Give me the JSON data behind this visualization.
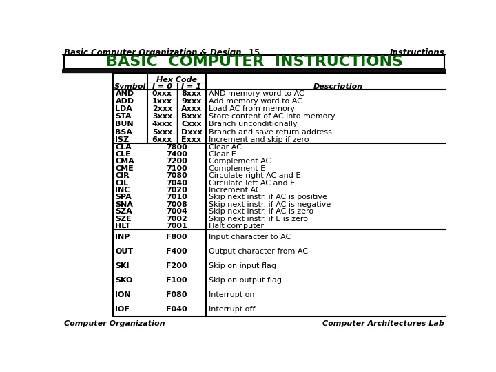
{
  "title_left": "Basic Computer Organization & Design",
  "title_center": "15",
  "title_right": "Instructions",
  "main_title": "BASIC  COMPUTER  INSTRUCTIONS",
  "main_title_color": "#006600",
  "mem_ref_rows": [
    [
      "AND",
      "0xxx",
      "8xxx",
      "AND memory word to AC"
    ],
    [
      "ADD",
      "1xxx",
      "9xxx",
      "Add memory word to AC"
    ],
    [
      "LDA",
      "2xxx",
      "Axxx",
      "Load AC from memory"
    ],
    [
      "STA",
      "3xxx",
      "Bxxx",
      "Store content of AC into memory"
    ],
    [
      "BUN",
      "4xxx",
      "Cxxx",
      "Branch unconditionally"
    ],
    [
      "BSA",
      "5xxx",
      "Dxxx",
      "Branch and save return address"
    ],
    [
      "ISZ",
      "6xxx",
      "Exxx",
      "Increment and skip if zero"
    ]
  ],
  "reg_ref_rows": [
    [
      "CLA",
      "7800",
      "Clear AC"
    ],
    [
      "CLE",
      "7400",
      "Clear E"
    ],
    [
      "CMA",
      "7200",
      "Complement AC"
    ],
    [
      "CME",
      "7100",
      "Complement E"
    ],
    [
      "CIR",
      "7080",
      "Circulate right AC and E"
    ],
    [
      "CIL",
      "7040",
      "Circulate left AC and E"
    ],
    [
      "INC",
      "7020",
      "Increment AC"
    ],
    [
      "SPA",
      "7010",
      "Skip next instr. if AC is positive"
    ],
    [
      "SNA",
      "7008",
      "Skip next instr. if AC is negative"
    ],
    [
      "SZA",
      "7004",
      "Skip next instr. if AC is zero"
    ],
    [
      "SZE",
      "7002",
      "Skip next instr. if E is zero"
    ],
    [
      "HLT",
      "7001",
      "Halt computer"
    ]
  ],
  "io_rows": [
    [
      "INP",
      "F800",
      "Input character to AC"
    ],
    [
      "OUT",
      "F400",
      "Output character from AC"
    ],
    [
      "SKI",
      "F200",
      "Skip on input flag"
    ],
    [
      "SKO",
      "F100",
      "Skip on output flag"
    ],
    [
      "ION",
      "F080",
      "Interrupt on"
    ],
    [
      "IOF",
      "F040",
      "Interrupt off"
    ]
  ],
  "footer_left": "Computer Organization",
  "footer_right": "Computer Architectures Lab",
  "bg_color": "#ffffff"
}
